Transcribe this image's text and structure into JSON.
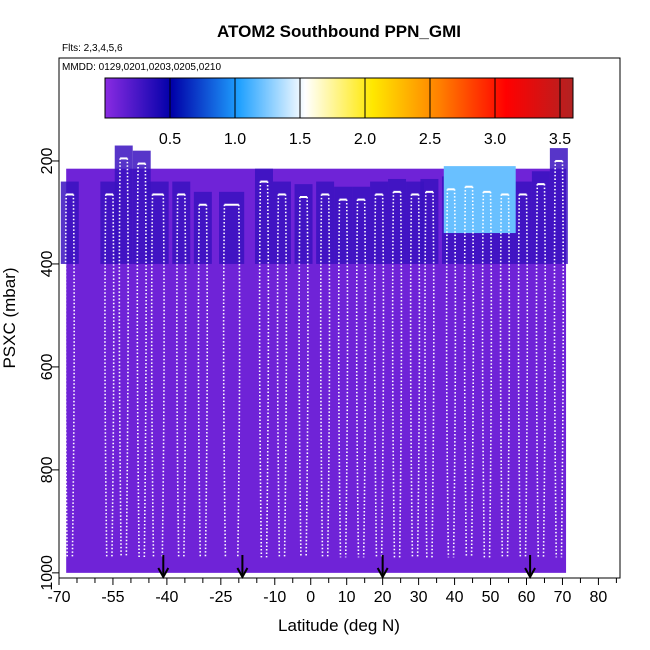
{
  "chart_data": {
    "type": "heatmap",
    "title": "ATOM2 Southbound PPN_GMI",
    "annotations": {
      "flights": "Flts: 2,3,4,5,6",
      "dates": "MMDD: 0129,0201,0203,0205,0210"
    },
    "xlabel": "Latitude (deg N)",
    "ylabel": "PSXC (mbar)",
    "xlim": [
      -70,
      86
    ],
    "ylim": [
      1010,
      0
    ],
    "x_tick_labels": [
      -70,
      -55,
      -40,
      -25,
      -10,
      0,
      10,
      20,
      30,
      40,
      50,
      60,
      70,
      80
    ],
    "x_minor_ticks": [
      -65,
      -60,
      -50,
      -45,
      -35,
      -30,
      -20,
      -15,
      -5,
      5,
      15,
      25,
      35,
      45,
      55,
      65,
      75,
      85
    ],
    "y_tick_labels": [
      200,
      400,
      600,
      800,
      1000
    ],
    "colorbar": {
      "ticks": [
        0.5,
        1.0,
        1.5,
        2.0,
        2.5,
        3.0,
        3.5
      ],
      "tick_labels": [
        "0.5",
        "1.0",
        "1.5",
        "2.0",
        "2.5",
        "3.0",
        "3.5"
      ],
      "range": [
        0.0,
        3.6
      ],
      "colors": [
        "#8a2be2",
        "#0000a8",
        "#1ea0ff",
        "#ffffff",
        "#ffe800",
        "#ff8000",
        "#ff0000",
        "#b22222"
      ]
    },
    "field": {
      "background_value": 0.1,
      "upper_column_value": 0.3,
      "lat_range": [
        -68,
        71
      ],
      "high_region": {
        "lat_range": [
          37,
          57
        ],
        "pressure_range": [
          210,
          340
        ],
        "value": 1.2
      }
    },
    "profiles": [
      {
        "lat_start": -68,
        "lat_end": -66,
        "p_top": 265
      },
      {
        "lat_start": -57,
        "lat_end": -55,
        "p_top": 265
      },
      {
        "lat_start": -53,
        "lat_end": -51,
        "p_top": 195
      },
      {
        "lat_start": -48,
        "lat_end": -46,
        "p_top": 205
      },
      {
        "lat_start": -44,
        "lat_end": -41,
        "p_top": 265
      },
      {
        "lat_start": -37,
        "lat_end": -35,
        "p_top": 265
      },
      {
        "lat_start": -31,
        "lat_end": -29,
        "p_top": 285
      },
      {
        "lat_start": -24,
        "lat_end": -20,
        "p_top": 285
      },
      {
        "lat_start": -14,
        "lat_end": -12,
        "p_top": 240
      },
      {
        "lat_start": -9,
        "lat_end": -7,
        "p_top": 265
      },
      {
        "lat_start": -3,
        "lat_end": -1,
        "p_top": 270
      },
      {
        "lat_start": 3,
        "lat_end": 5,
        "p_top": 265
      },
      {
        "lat_start": 8,
        "lat_end": 10,
        "p_top": 275
      },
      {
        "lat_start": 13,
        "lat_end": 15,
        "p_top": 275
      },
      {
        "lat_start": 18,
        "lat_end": 20,
        "p_top": 265
      },
      {
        "lat_start": 23,
        "lat_end": 25,
        "p_top": 260
      },
      {
        "lat_start": 28,
        "lat_end": 30,
        "p_top": 265
      },
      {
        "lat_start": 32,
        "lat_end": 34,
        "p_top": 260
      },
      {
        "lat_start": 38,
        "lat_end": 40,
        "p_top": 255
      },
      {
        "lat_start": 43,
        "lat_end": 45,
        "p_top": 250
      },
      {
        "lat_start": 48,
        "lat_end": 50,
        "p_top": 260
      },
      {
        "lat_start": 53,
        "lat_end": 55,
        "p_top": 265
      },
      {
        "lat_start": 58,
        "lat_end": 60,
        "p_top": 265
      },
      {
        "lat_start": 63,
        "lat_end": 65,
        "p_top": 245
      },
      {
        "lat_start": 68,
        "lat_end": 70,
        "p_top": 200
      }
    ],
    "arrows_lat": [
      -41,
      -19,
      20,
      61
    ]
  }
}
